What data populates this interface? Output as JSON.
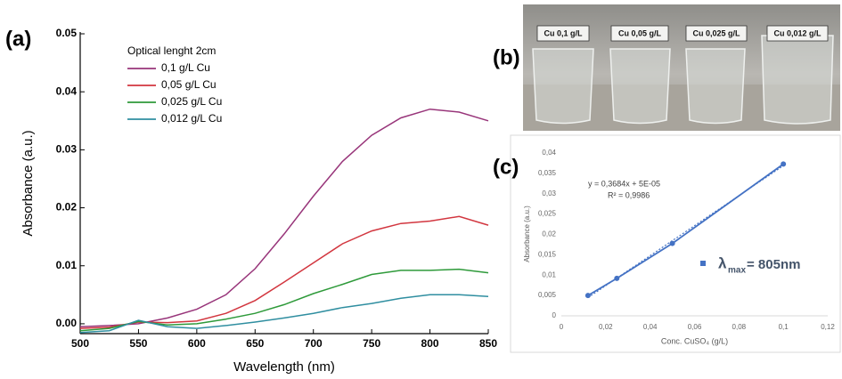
{
  "chart_data": [
    {
      "type": "line",
      "panel_label": "(a)",
      "x_label": "Wavelength (nm)",
      "y_label": "Absorbance (a.u.)",
      "legend_title": "Optical lenght 2cm",
      "x": [
        500,
        525,
        550,
        575,
        600,
        625,
        650,
        675,
        700,
        725,
        750,
        775,
        800,
        825,
        850
      ],
      "series": [
        {
          "name": "0,1 g/L Cu",
          "color": "#98357a",
          "values": [
            -0.0005,
            -0.0003,
            0.0,
            0.001,
            0.0025,
            0.005,
            0.0095,
            0.0155,
            0.022,
            0.028,
            0.0325,
            0.0355,
            0.037,
            0.0365,
            0.035
          ]
        },
        {
          "name": "0,05 g/L Cu",
          "color": "#d2363f",
          "values": [
            -0.0008,
            -0.0006,
            0.0003,
            0.0002,
            0.0005,
            0.0018,
            0.004,
            0.0072,
            0.0105,
            0.0138,
            0.016,
            0.0173,
            0.0177,
            0.0185,
            0.017
          ]
        },
        {
          "name": "0,025 g/L Cu",
          "color": "#2e9a3a",
          "values": [
            -0.0012,
            -0.0008,
            0.0004,
            -0.0002,
            0.0,
            0.0008,
            0.0018,
            0.0033,
            0.0052,
            0.0068,
            0.0085,
            0.0092,
            0.0092,
            0.0094,
            0.0088
          ]
        },
        {
          "name": "0,012 g/L Cu",
          "color": "#2f8ea0",
          "values": [
            -0.0015,
            -0.0012,
            0.0006,
            -0.0005,
            -0.0008,
            -0.0003,
            0.0003,
            0.001,
            0.0018,
            0.0028,
            0.0035,
            0.0044,
            0.005,
            0.005,
            0.0047
          ]
        }
      ],
      "xlim": [
        500,
        850
      ],
      "xticks": [
        500,
        550,
        600,
        650,
        700,
        750,
        800,
        850
      ],
      "ylim": [
        -0.0017,
        0.05
      ],
      "yticks": [
        {
          "value": 0,
          "label": "0.00"
        },
        {
          "value": 0.01,
          "label": "0.01"
        },
        {
          "value": 0.02,
          "label": "0.02"
        },
        {
          "value": 0.03,
          "label": "0.03"
        },
        {
          "value": 0.04,
          "label": "0.04"
        },
        {
          "value": 0.05,
          "label": "0.05"
        }
      ]
    },
    {
      "type": "scatter",
      "panel_label": "(c)",
      "x_label": "Conc. CuSO₄ (g/L)",
      "y_label": "Absorbance (a.u.)",
      "connected": true,
      "color": "#4472c4",
      "x": [
        0.012,
        0.025,
        0.05,
        0.1
      ],
      "values": [
        0.005,
        0.0092,
        0.0178,
        0.0373
      ],
      "equation": "y = 0,3684x + 5E-05",
      "r_squared": "R² = 0,9986",
      "trendline": {
        "slope": 0.3684,
        "intercept": 5e-05
      },
      "legend": {
        "symbol": "λ",
        "subscript": "max",
        "text": "= 805nm",
        "color": "#44546a"
      },
      "xlim": [
        0,
        0.12
      ],
      "xticks": [
        0,
        {
          "value": 0.02,
          "label": "0,02"
        },
        {
          "value": 0.04,
          "label": "0,04"
        },
        {
          "value": 0.06,
          "label": "0,06"
        },
        {
          "value": 0.08,
          "label": "0,08"
        },
        {
          "value": 0.1,
          "label": "0,1"
        },
        {
          "value": 0.12,
          "label": "0,12"
        }
      ],
      "ylim": [
        0,
        0.04
      ],
      "yticks": [
        0,
        {
          "value": 0.005,
          "label": "0,005"
        },
        {
          "value": 0.01,
          "label": "0,01"
        },
        {
          "value": 0.015,
          "label": "0,015"
        },
        {
          "value": 0.02,
          "label": "0,02"
        },
        {
          "value": 0.025,
          "label": "0,025"
        },
        {
          "value": 0.03,
          "label": "0,03"
        },
        {
          "value": 0.035,
          "label": "0,035"
        },
        {
          "value": 0.04,
          "label": "0,04"
        }
      ]
    }
  ],
  "photo": {
    "panel_label": "(b)",
    "vials": [
      "Cu 0,1 g/L",
      "Cu 0,05 g/L",
      "Cu 0,025 g/L",
      "Cu 0,012 g/L"
    ]
  }
}
